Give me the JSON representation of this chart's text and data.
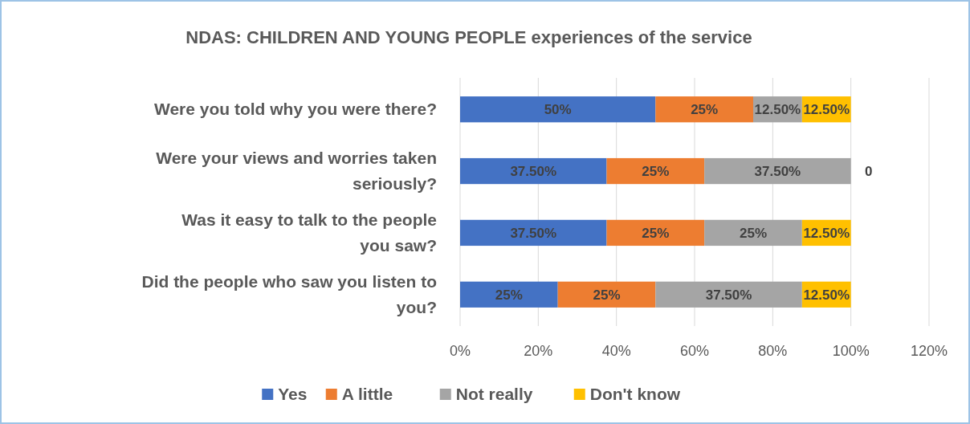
{
  "chart_data": {
    "type": "bar",
    "orientation": "horizontal",
    "stacked": true,
    "title": "NDAS: CHILDREN AND YOUNG PEOPLE experiences of the service",
    "categories": [
      "Were you told why you were there?",
      "Were your views and worries taken seriously?",
      "Was it easy to talk to the people you saw?",
      "Did the people who saw you listen to you?"
    ],
    "series": [
      {
        "name": "Yes",
        "color": "#4472c4",
        "values": [
          50,
          37.5,
          37.5,
          25
        ],
        "value_labels": [
          "50%",
          "37.50%",
          "37.50%",
          "25%"
        ]
      },
      {
        "name": "A little",
        "color": "#ed7d31",
        "values": [
          25,
          25,
          25,
          25
        ],
        "value_labels": [
          "25%",
          "25%",
          "25%",
          "25%"
        ]
      },
      {
        "name": "Not really",
        "color": "#a5a5a5",
        "values": [
          12.5,
          37.5,
          25,
          37.5
        ],
        "value_labels": [
          "12.50%",
          "37.50%",
          "25%",
          "37.50%"
        ]
      },
      {
        "name": "Don't know",
        "color": "#ffc000",
        "values": [
          12.5,
          0,
          12.5,
          12.5
        ],
        "value_labels": [
          "12.50%",
          "0",
          "12.50%",
          "12.50%"
        ]
      }
    ],
    "xlim": [
      0,
      120
    ],
    "xticks": [
      {
        "value": 0,
        "label": "0%"
      },
      {
        "value": 20,
        "label": "20%"
      },
      {
        "value": 40,
        "label": "40%"
      },
      {
        "value": 60,
        "label": "60%"
      },
      {
        "value": 80,
        "label": "80%"
      },
      {
        "value": 100,
        "label": "100%"
      },
      {
        "value": 120,
        "label": "120%"
      }
    ],
    "grid": "x",
    "legend": "bottom"
  }
}
